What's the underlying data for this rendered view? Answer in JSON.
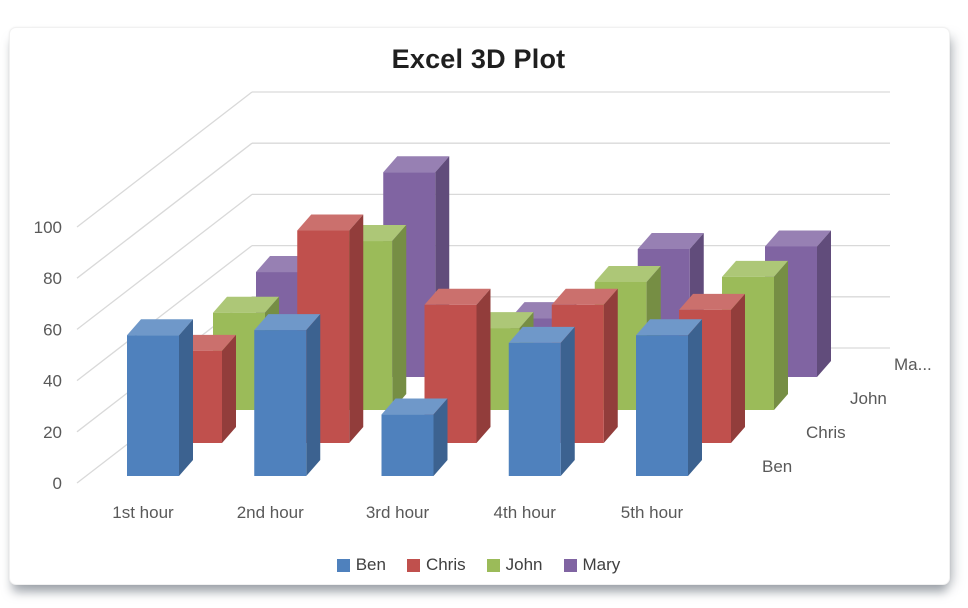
{
  "chart_data": {
    "type": "bar",
    "subtype": "3d-column",
    "title": "Excel 3D Plot",
    "categories": [
      "1st hour",
      "2nd hour",
      "3rd hour",
      "4th hour",
      "5th hour"
    ],
    "series": [
      {
        "name": "Ben",
        "color": "#4F81BD",
        "values": [
          55,
          57,
          24,
          52,
          55
        ]
      },
      {
        "name": "Chris",
        "color": "#C0504D",
        "values": [
          36,
          83,
          54,
          54,
          52
        ]
      },
      {
        "name": "John",
        "color": "#9BBB59",
        "values": [
          38,
          66,
          32,
          50,
          52
        ]
      },
      {
        "name": "Mary",
        "color": "#8064A2",
        "values": [
          41,
          80,
          23,
          50,
          51
        ]
      }
    ],
    "ylim": [
      0,
      100
    ],
    "ytick_step": 20,
    "yticks": [
      "0",
      "20",
      "40",
      "60",
      "80",
      "100"
    ],
    "depth_axis_labels_displayed": [
      "Ben",
      "Chris",
      "John",
      "Ma..."
    ],
    "legend": {
      "position": "bottom",
      "entries": [
        "Ben",
        "Chris",
        "John",
        "Mary"
      ]
    },
    "grid": true,
    "colors": {
      "axis_text": "#595959",
      "title_text": "#1f1f1f",
      "legend_text": "#404040",
      "gridline": "#d9d9d9"
    }
  }
}
